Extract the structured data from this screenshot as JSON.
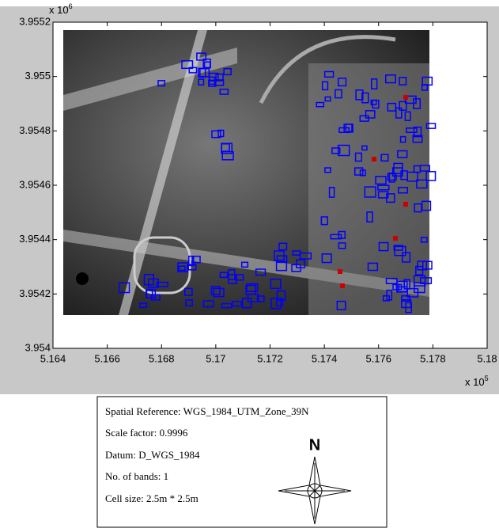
{
  "chart_data": {
    "type": "image",
    "xlim": [
      5.164,
      5.18
    ],
    "xticks": [
      5.164,
      5.166,
      5.168,
      5.17,
      5.172,
      5.174,
      5.176,
      5.178,
      5.18
    ],
    "ylim": [
      3.954,
      3.9552
    ],
    "yticks": [
      3.954,
      3.9542,
      3.9544,
      3.9546,
      3.9548,
      3.955,
      3.9552
    ],
    "x_multiplier": {
      "base": "x 10",
      "exponent": "5"
    },
    "y_multiplier": {
      "base": "x 10",
      "exponent": "6"
    }
  },
  "info_box": {
    "lines": [
      "Spatial Reference: WGS_1984_UTM_Zone_39N",
      "Scale factor: 0.9996",
      "Datum: D_WGS_1984",
      "No. of bands: 1",
      "Cell size: 2.5m * 2.5m"
    ],
    "north_label": "N"
  }
}
